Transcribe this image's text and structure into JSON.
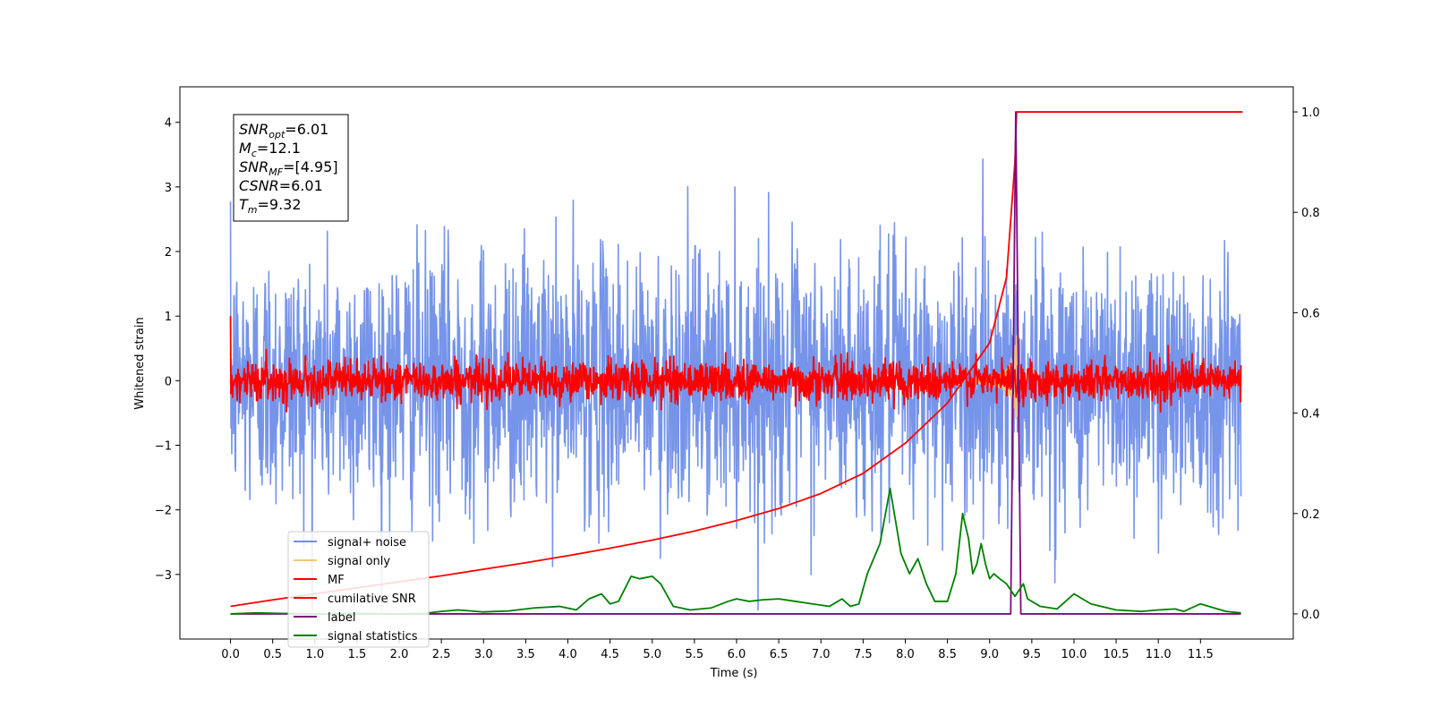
{
  "chart_data": {
    "type": "line",
    "xlabel": "Time (s)",
    "ylabel": "Whitened strain",
    "xlim": [
      -0.6,
      12.6
    ],
    "ylim": [
      -4.0,
      4.55
    ],
    "ylim_right": [
      -0.05,
      1.05
    ],
    "x_ticks": [
      "0.0",
      "0.5",
      "1.0",
      "1.5",
      "2.0",
      "2.5",
      "3.0",
      "3.5",
      "4.0",
      "4.5",
      "5.0",
      "5.5",
      "6.0",
      "6.5",
      "7.0",
      "7.5",
      "8.0",
      "8.5",
      "9.0",
      "9.5",
      "10.0",
      "10.5",
      "11.0",
      "11.5"
    ],
    "y_ticks": [
      "4",
      "3",
      "2",
      "1",
      "0",
      "−1",
      "−2",
      "−3"
    ],
    "y_right_ticks": [
      "1.0",
      "0.8",
      "0.6",
      "0.4",
      "0.2",
      "0.0"
    ],
    "legend_placement": "lower-left",
    "info_box": [
      {
        "base": "SNR",
        "sub": "opt",
        "value": "=6.01"
      },
      {
        "base": "M",
        "sub": "c",
        "value": "=12.1"
      },
      {
        "base": "SNR",
        "sub": "MF",
        "value": "=[4.95]"
      },
      {
        "base": "CSNR",
        "sub": "",
        "value": "=6.01"
      },
      {
        "base": "T",
        "sub": "m",
        "value": "=9.32"
      }
    ],
    "series": [
      {
        "name": "signal+ noise",
        "axis": "left",
        "color": "#6f8ee8",
        "kind": "noise",
        "description_values": {
          "x_range": [
            0.0,
            11.98
          ],
          "mean": 0.0,
          "std": 1.0,
          "max": 4.15,
          "min": -3.55
        }
      },
      {
        "name": "signal only",
        "axis": "left",
        "color": "#f4c57a",
        "kind": "chirp",
        "description_values": {
          "peak_time": 9.32,
          "peak_amplitude": 0.8
        }
      },
      {
        "name": "MF",
        "axis": "left",
        "color": "#ff0000",
        "kind": "noise",
        "description_values": {
          "x_range": [
            0.0,
            11.98
          ],
          "mean": 0.0,
          "std": 0.15,
          "start_value": 1.0
        }
      },
      {
        "name": "cumilative SNR",
        "axis": "right",
        "color": "#ff0000",
        "x": [
          0.0,
          0.5,
          1.0,
          1.5,
          2.0,
          2.5,
          3.0,
          3.5,
          4.0,
          4.5,
          5.0,
          5.5,
          6.0,
          6.5,
          7.0,
          7.5,
          8.0,
          8.5,
          9.0,
          9.2,
          9.3,
          9.32,
          12.0
        ],
        "y": [
          0.015,
          0.028,
          0.04,
          0.052,
          0.064,
          0.076,
          0.089,
          0.102,
          0.116,
          0.131,
          0.147,
          0.165,
          0.186,
          0.21,
          0.24,
          0.28,
          0.34,
          0.42,
          0.54,
          0.67,
          0.9,
          1.0,
          1.0
        ]
      },
      {
        "name": "label",
        "axis": "right",
        "color": "#7d0a7d",
        "x": [
          0.0,
          9.25,
          9.31,
          9.37,
          11.98
        ],
        "y": [
          0.0,
          0.0,
          1.0,
          0.0,
          0.0
        ]
      },
      {
        "name": "signal statistics",
        "axis": "right",
        "color": "#008000",
        "x": [
          0.0,
          0.3,
          0.6,
          1.0,
          1.5,
          2.0,
          2.3,
          2.5,
          2.7,
          3.0,
          3.3,
          3.6,
          3.9,
          4.1,
          4.25,
          4.4,
          4.5,
          4.6,
          4.75,
          4.85,
          5.0,
          5.1,
          5.25,
          5.45,
          5.7,
          5.9,
          6.0,
          6.15,
          6.3,
          6.5,
          6.7,
          6.9,
          7.1,
          7.25,
          7.35,
          7.45,
          7.55,
          7.7,
          7.82,
          7.95,
          8.05,
          8.15,
          8.25,
          8.35,
          8.5,
          8.6,
          8.68,
          8.75,
          8.8,
          8.85,
          8.9,
          8.95,
          9.0,
          9.05,
          9.12,
          9.2,
          9.3,
          9.4,
          9.45,
          9.6,
          9.8,
          10.0,
          10.2,
          10.5,
          10.8,
          11.0,
          11.2,
          11.3,
          11.5,
          11.8,
          11.98
        ],
        "y": [
          0.0,
          0.002,
          0.001,
          0.0,
          0.001,
          0.0,
          0.001,
          0.005,
          0.008,
          0.004,
          0.006,
          0.012,
          0.015,
          0.008,
          0.03,
          0.04,
          0.02,
          0.025,
          0.075,
          0.07,
          0.075,
          0.06,
          0.015,
          0.008,
          0.012,
          0.025,
          0.03,
          0.025,
          0.028,
          0.03,
          0.025,
          0.02,
          0.015,
          0.03,
          0.015,
          0.02,
          0.08,
          0.14,
          0.25,
          0.12,
          0.08,
          0.11,
          0.06,
          0.025,
          0.025,
          0.08,
          0.2,
          0.15,
          0.08,
          0.1,
          0.14,
          0.1,
          0.07,
          0.08,
          0.07,
          0.06,
          0.035,
          0.06,
          0.03,
          0.015,
          0.01,
          0.04,
          0.02,
          0.008,
          0.005,
          0.008,
          0.01,
          0.005,
          0.02,
          0.005,
          0.002
        ]
      }
    ]
  }
}
